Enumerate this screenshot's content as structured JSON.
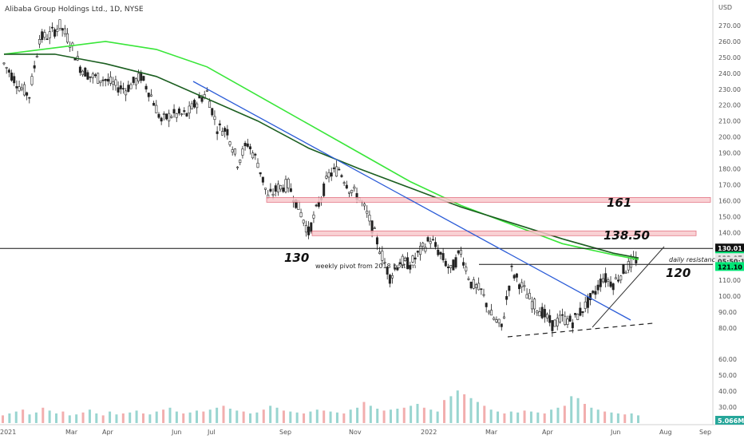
{
  "chart_title": "Alibaba Group Holdings Ltd., 1D, NYSE",
  "currency": "USD",
  "colors": {
    "ma_fast": "#39e639",
    "ma_slow": "#1b5e20",
    "trend_blue": "#2a5bd7",
    "zone_fill": "#f8c9cd",
    "zone_stroke": "#e06070",
    "vol_up": "#80cbc4",
    "vol_down": "#ef9a9a",
    "tag_green": "#00e676"
  },
  "chart_data": {
    "type": "candlestick",
    "title": "Alibaba Group Holdings Ltd., 1D, NYSE",
    "x_ticks": [
      "2021",
      "Mar",
      "Apr",
      "Jun",
      "Jul",
      "Sep",
      "Nov",
      "2022",
      "Mar",
      "Apr",
      "Jun",
      "Aug",
      "Sep"
    ],
    "y_ticks": [
      80,
      90,
      100,
      110,
      120,
      130,
      140,
      150,
      160,
      170,
      180,
      190,
      200,
      210,
      220,
      230,
      240,
      250,
      260,
      270
    ],
    "volume_ticks": [
      30,
      40,
      50,
      60
    ],
    "ylim": [
      70,
      276
    ],
    "price_path": [
      [
        0,
        246
      ],
      [
        3,
        232
      ],
      [
        5,
        226
      ],
      [
        7,
        262
      ],
      [
        9,
        264
      ],
      [
        11,
        270
      ],
      [
        13,
        260
      ],
      [
        15,
        244
      ],
      [
        17,
        238
      ],
      [
        20,
        236
      ],
      [
        22,
        232
      ],
      [
        24,
        230
      ],
      [
        27,
        238
      ],
      [
        29,
        226
      ],
      [
        31,
        210
      ],
      [
        33,
        214
      ],
      [
        36,
        214
      ],
      [
        38,
        222
      ],
      [
        40,
        228
      ],
      [
        42,
        206
      ],
      [
        44,
        204
      ],
      [
        46,
        184
      ],
      [
        48,
        196
      ],
      [
        50,
        184
      ],
      [
        52,
        162
      ],
      [
        54,
        168
      ],
      [
        56,
        170
      ],
      [
        58,
        156
      ],
      [
        60,
        140
      ],
      [
        62,
        158
      ],
      [
        64,
        176
      ],
      [
        66,
        180
      ],
      [
        68,
        168
      ],
      [
        70,
        162
      ],
      [
        72,
        148
      ],
      [
        74,
        130
      ],
      [
        76,
        112
      ],
      [
        78,
        122
      ],
      [
        80,
        120
      ],
      [
        82,
        128
      ],
      [
        84,
        136
      ],
      [
        86,
        126
      ],
      [
        88,
        116
      ],
      [
        90,
        128
      ],
      [
        92,
        108
      ],
      [
        94,
        103
      ],
      [
        96,
        88
      ],
      [
        98,
        80
      ],
      [
        100,
        116
      ],
      [
        102,
        106
      ],
      [
        104,
        96
      ],
      [
        106,
        90
      ],
      [
        108,
        82
      ],
      [
        110,
        86
      ],
      [
        112,
        84
      ],
      [
        114,
        92
      ],
      [
        116,
        100
      ],
      [
        118,
        112
      ],
      [
        120,
        108
      ],
      [
        122,
        116
      ],
      [
        124,
        122
      ],
      [
        125,
        124
      ]
    ],
    "series": [
      {
        "name": "",
        "kind": "ma_fast",
        "points": [
          [
            0,
            252
          ],
          [
            10,
            256
          ],
          [
            20,
            260
          ],
          [
            30,
            255
          ],
          [
            40,
            244
          ],
          [
            50,
            226
          ],
          [
            60,
            208
          ],
          [
            70,
            190
          ],
          [
            80,
            172
          ],
          [
            90,
            157
          ],
          [
            100,
            145
          ],
          [
            110,
            133
          ],
          [
            120,
            126
          ],
          [
            125,
            123
          ]
        ]
      },
      {
        "name": "",
        "kind": "ma_slow",
        "points": [
          [
            0,
            252
          ],
          [
            10,
            252
          ],
          [
            20,
            246
          ],
          [
            30,
            238
          ],
          [
            40,
            224
          ],
          [
            50,
            210
          ],
          [
            60,
            193
          ],
          [
            70,
            180
          ],
          [
            80,
            168
          ],
          [
            90,
            156
          ],
          [
            100,
            146
          ],
          [
            110,
            136
          ],
          [
            120,
            127
          ],
          [
            125,
            124
          ]
        ]
      }
    ],
    "volume": [
      8,
      10,
      12,
      14,
      9,
      11,
      16,
      13,
      10,
      12,
      8,
      9,
      11,
      14,
      10,
      8,
      12,
      9,
      10,
      11,
      13,
      10,
      9,
      12,
      14,
      16,
      12,
      10,
      11,
      13,
      12,
      14,
      16,
      18,
      15,
      13,
      12,
      10,
      11,
      14,
      18,
      16,
      13,
      12,
      11,
      10,
      12,
      14,
      13,
      12,
      11,
      10,
      14,
      16,
      22,
      18,
      15,
      13,
      14,
      15,
      16,
      18,
      20,
      16,
      14,
      12,
      24,
      28,
      34,
      30,
      26,
      22,
      18,
      14,
      12,
      10,
      12,
      11,
      13,
      12,
      11,
      10,
      14,
      16,
      18,
      28,
      26,
      20,
      16,
      14,
      12,
      11,
      10,
      9,
      10,
      8
    ],
    "last_volume_label": "5.066M",
    "annotations": {
      "levels": [
        {
          "value": 130,
          "label": "130"
        },
        {
          "value": 120,
          "label": "120"
        }
      ],
      "zones": [
        {
          "low": 159,
          "high": 162,
          "label": "161"
        },
        {
          "low": 138,
          "high": 141,
          "label": "138.50"
        }
      ],
      "notes": [
        "weekly pivot from 2018 bottom",
        "daily resistance"
      ]
    },
    "price_tags": [
      {
        "label": "130.01",
        "value": 130.01,
        "style": "black"
      },
      {
        "label": "124.98",
        "value": 124.98,
        "style": "green"
      },
      {
        "label": "123.97",
        "value": 123.97,
        "style": "gray"
      },
      {
        "label": "05:50:12",
        "value": 121.9,
        "style": "gray"
      },
      {
        "label": "121.10",
        "value": 118.4,
        "style": "green"
      }
    ]
  }
}
